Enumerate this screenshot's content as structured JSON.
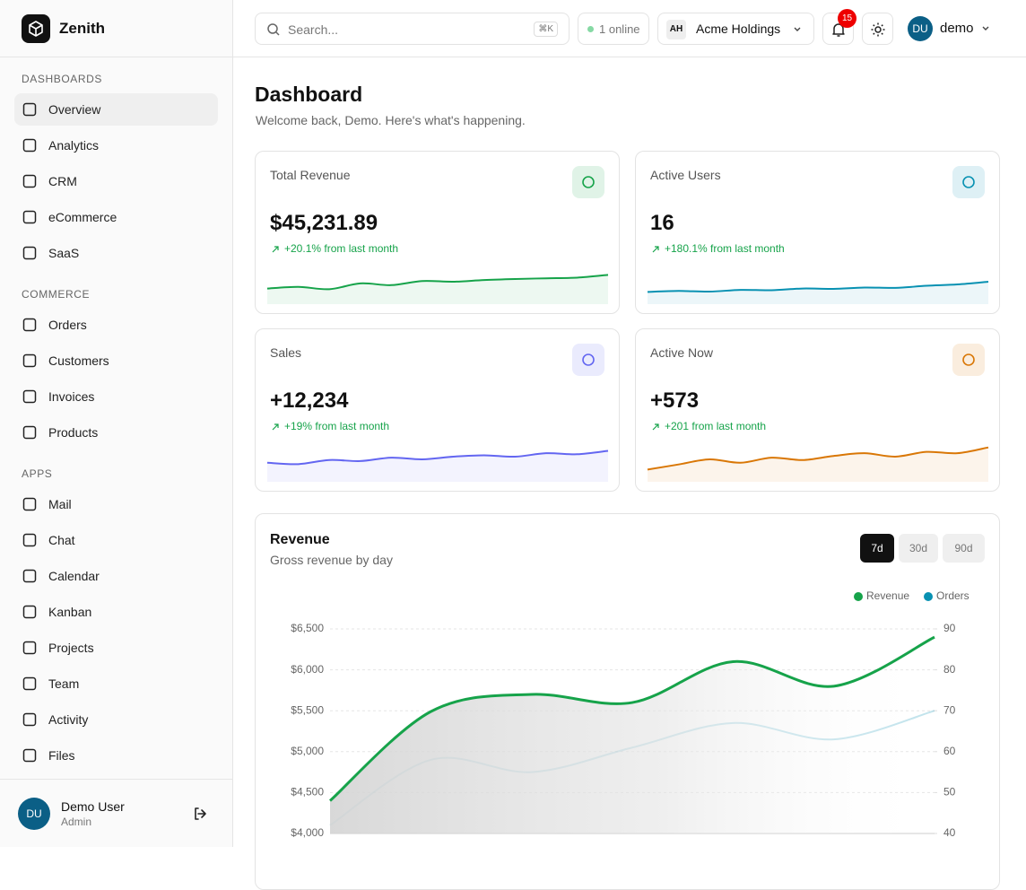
{
  "sidebar": {
    "brand": "Zenith",
    "sections": [
      {
        "title": "DASHBOARDS",
        "items": [
          "Overview",
          "Analytics",
          "CRM",
          "eCommerce",
          "SaaS"
        ]
      },
      {
        "title": "COMMERCE",
        "items": [
          "Orders",
          "Customers",
          "Invoices",
          "Products"
        ]
      },
      {
        "title": "APPS",
        "items": [
          "Mail",
          "Chat",
          "Calendar",
          "Kanban",
          "Projects",
          "Team",
          "Activity",
          "Files"
        ]
      }
    ],
    "user": {
      "initials": "DU",
      "name": "Demo User",
      "role": "Admin"
    }
  },
  "topbar": {
    "search_placeholder": "Search...",
    "shortcut": "⌘K",
    "online": "1 online",
    "org_initials": "AH",
    "org": "Acme Holdings",
    "notifications": 15,
    "user_initials": "DU",
    "user": "demo"
  },
  "header": {
    "title": "Dashboard",
    "subtitle": "Welcome back, Demo. Here's what's happening."
  },
  "cards": [
    {
      "title": "Total Revenue",
      "value": "$45,231.89",
      "change": "+20.1% from last month",
      "color": "#16a34a",
      "spark": [
        30,
        35,
        28,
        45,
        40,
        52,
        50,
        55,
        58,
        60,
        62,
        70
      ]
    },
    {
      "title": "Active Users",
      "value": "16",
      "change": "+180.1% from last month",
      "color": "#0891b2",
      "spark": [
        20,
        23,
        21,
        26,
        25,
        30,
        29,
        33,
        32,
        38,
        42,
        50
      ]
    },
    {
      "title": "Sales",
      "value": "+12,234",
      "change": "+19% from last month",
      "color": "#6366f1",
      "spark": [
        40,
        36,
        48,
        45,
        55,
        50,
        58,
        62,
        58,
        68,
        65,
        75
      ]
    },
    {
      "title": "Active Now",
      "value": "+573",
      "change": "+201 from last month",
      "color": "#d97706",
      "spark": [
        20,
        35,
        50,
        40,
        55,
        48,
        60,
        68,
        58,
        72,
        68,
        85
      ]
    }
  ],
  "chart_controls": {
    "ranges": [
      "7d",
      "30d",
      "90d"
    ]
  },
  "chart_data": {
    "type": "line",
    "title": "Revenue",
    "subtitle": "Gross revenue by day",
    "categories": [
      null,
      null,
      null,
      null,
      null,
      null,
      null
    ],
    "series": [
      {
        "name": "Revenue",
        "color": "#16a34a",
        "values": [
          4400,
          5490,
          5700,
          5600,
          6100,
          5800,
          6400
        ]
      },
      {
        "name": "Orders",
        "color": "#0891b2",
        "axis": "y2",
        "values": [
          42,
          58,
          55,
          61,
          67,
          63,
          70
        ]
      }
    ],
    "ylim": [
      4000,
      6500
    ],
    "yticks": [
      {
        "value": 4000,
        "label": "$4,000"
      },
      {
        "value": 4500,
        "label": "$4,500"
      },
      {
        "value": 5000,
        "label": "$5,000"
      },
      {
        "value": 5500,
        "label": "$5,500"
      },
      {
        "value": 6000,
        "label": "$6,000"
      },
      {
        "value": 6500,
        "label": "$6,500"
      }
    ],
    "y2lim": [
      40,
      90
    ],
    "y2ticks": [
      40,
      50,
      60,
      70,
      80,
      90
    ],
    "grid": true
  }
}
